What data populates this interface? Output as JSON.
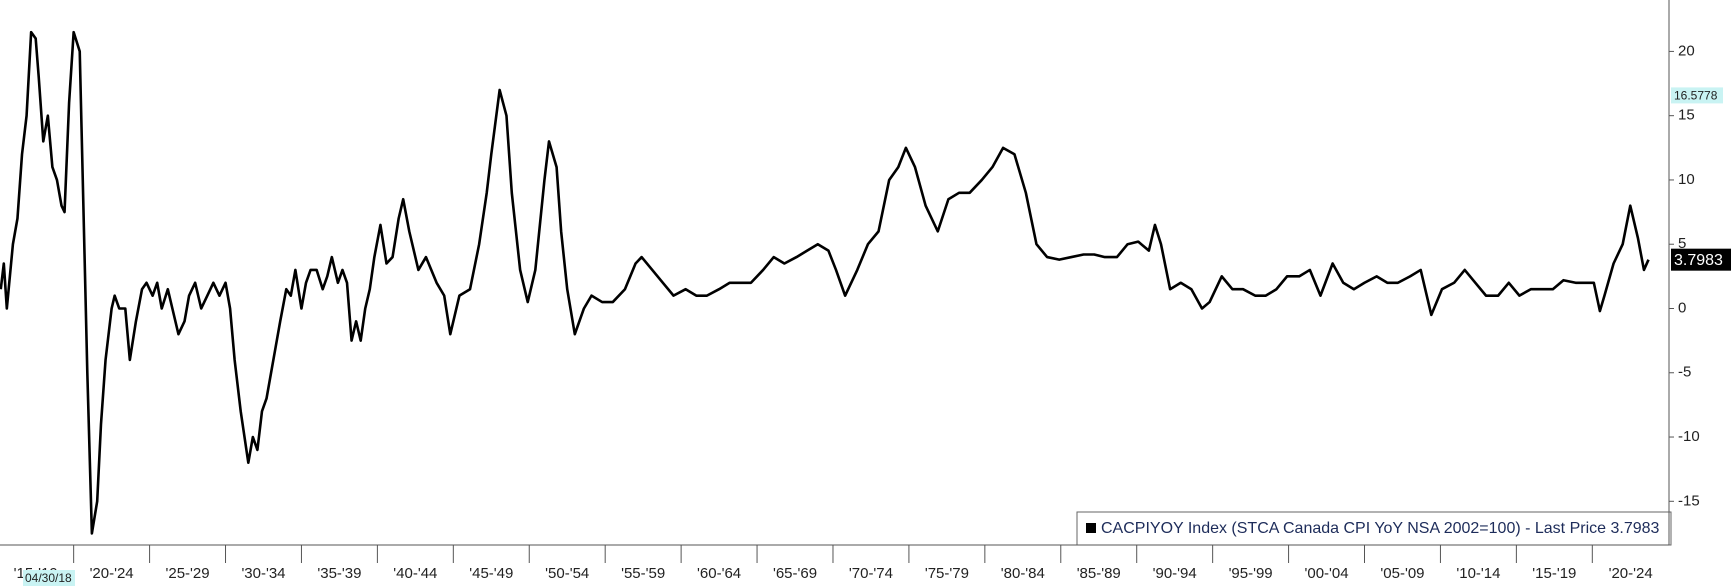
{
  "chart_data": {
    "type": "line",
    "date_label": "04/30/18",
    "xlim": [
      1915.15,
      2025.05
    ],
    "xticks": [
      {
        "value": 1915,
        "label": "'15-'19"
      },
      {
        "value": 1920,
        "label": "'20-'24"
      },
      {
        "value": 1925,
        "label": "'25-'29"
      },
      {
        "value": 1930,
        "label": "'30-'34"
      },
      {
        "value": 1935,
        "label": "'35-'39"
      },
      {
        "value": 1940,
        "label": "'40-'44"
      },
      {
        "value": 1945,
        "label": "'45-'49"
      },
      {
        "value": 1950,
        "label": "'50-'54"
      },
      {
        "value": 1955,
        "label": "'55-'59"
      },
      {
        "value": 1960,
        "label": "'60-'64"
      },
      {
        "value": 1965,
        "label": "'65-'69"
      },
      {
        "value": 1970,
        "label": "'70-'74"
      },
      {
        "value": 1975,
        "label": "'75-'79"
      },
      {
        "value": 1980,
        "label": "'80-'84"
      },
      {
        "value": 1985,
        "label": "'85-'89"
      },
      {
        "value": 1990,
        "label": "'90-'94"
      },
      {
        "value": 1995,
        "label": "'95-'99"
      },
      {
        "value": 2000,
        "label": "'00-'04"
      },
      {
        "value": 2005,
        "label": "'05-'09"
      },
      {
        "value": 2010,
        "label": "'10-'14"
      },
      {
        "value": 2015,
        "label": "'15-'19"
      },
      {
        "value": 2020,
        "label": "'20-'24"
      }
    ],
    "ylim": [
      -18.4,
      24
    ],
    "yticks": [
      -15,
      -10,
      -5,
      0,
      5,
      10,
      15,
      20
    ],
    "markers": [
      16.5778,
      3.7983
    ],
    "x": [
      1915.2,
      1915.4,
      1915.6,
      1916.0,
      1916.3,
      1916.6,
      1916.9,
      1917.2,
      1917.5,
      1917.7,
      1918.0,
      1918.3,
      1918.6,
      1918.9,
      1919.2,
      1919.4,
      1919.7,
      1920.0,
      1920.4,
      1920.6,
      1920.9,
      1921.2,
      1921.55,
      1921.8,
      1922.1,
      1922.5,
      1922.7,
      1923.0,
      1923.4,
      1923.7,
      1924.1,
      1924.5,
      1924.8,
      1925.2,
      1925.5,
      1925.8,
      1926.2,
      1926.5,
      1926.9,
      1927.3,
      1927.6,
      1928.0,
      1928.4,
      1928.8,
      1929.2,
      1929.6,
      1930.0,
      1930.3,
      1930.6,
      1931.0,
      1931.5,
      1931.8,
      1932.1,
      1932.4,
      1932.7,
      1933.0,
      1933.3,
      1933.6,
      1934.0,
      1934.3,
      1934.6,
      1935.0,
      1935.3,
      1935.6,
      1936.0,
      1936.4,
      1936.7,
      1937.0,
      1937.4,
      1937.7,
      1938.0,
      1938.3,
      1938.6,
      1938.9,
      1939.2,
      1939.5,
      1939.8,
      1940.2,
      1940.6,
      1941.0,
      1941.4,
      1941.7,
      1942.1,
      1942.7,
      1943.2,
      1943.9,
      1944.4,
      1944.8,
      1945.4,
      1946.1,
      1946.7,
      1947.2,
      1947.5,
      1948.05,
      1948.5,
      1948.85,
      1949.4,
      1949.9,
      1950.4,
      1951.0,
      1951.3,
      1951.8,
      1952.1,
      1952.5,
      1953.0,
      1953.6,
      1954.1,
      1954.8,
      1955.5,
      1956.3,
      1957.0,
      1957.4,
      1958.1,
      1958.8,
      1959.5,
      1960.3,
      1961.0,
      1961.7,
      1962.5,
      1963.2,
      1963.9,
      1964.6,
      1965.4,
      1966.1,
      1966.8,
      1967.6,
      1968.3,
      1969.0,
      1969.7,
      1970.2,
      1970.8,
      1971.6,
      1972.3,
      1973.0,
      1973.7,
      1974.3,
      1974.8,
      1975.4,
      1976.1,
      1976.9,
      1977.6,
      1978.3,
      1979.0,
      1979.8,
      1980.5,
      1981.2,
      1981.95,
      1982.7,
      1983.4,
      1984.1,
      1984.9,
      1985.7,
      1986.5,
      1987.2,
      1987.9,
      1988.7,
      1989.4,
      1990.1,
      1990.8,
      1991.2,
      1991.6,
      1992.2,
      1992.9,
      1993.6,
      1994.3,
      1994.8,
      1995.6,
      1996.3,
      1997.0,
      1997.8,
      1998.5,
      1999.2,
      1999.9,
      2000.7,
      2001.4,
      2002.1,
      2002.9,
      2003.6,
      2004.3,
      2005.0,
      2005.8,
      2006.5,
      2007.2,
      2008.0,
      2008.7,
      2009.4,
      2010.1,
      2010.9,
      2011.6,
      2012.3,
      2013.0,
      2013.8,
      2014.5,
      2015.2,
      2015.95,
      2016.7,
      2017.4,
      2018.1,
      2018.9,
      2019.6,
      2020.1,
      2020.5,
      2020.8,
      2021.4,
      2022.0,
      2022.5,
      2023.0,
      2023.4,
      2023.7
    ],
    "series": [
      {
        "name": "CACPIYOY Index (STCA Canada CPI YoY NSA 2002=100) - Last Price 3.7983",
        "color": "#000000",
        "values": [
          1.5,
          3.5,
          0,
          5,
          7,
          12,
          15,
          21.5,
          21,
          18,
          13,
          15,
          11,
          10,
          8,
          7.5,
          16,
          21.5,
          20,
          10,
          -5,
          -17.5,
          -15,
          -9,
          -4,
          0,
          1,
          0,
          0,
          -4,
          -1,
          1.5,
          2,
          1,
          2,
          0,
          1.5,
          0,
          -2,
          -1,
          1,
          2,
          0,
          1,
          2,
          1,
          2,
          0,
          -4,
          -8,
          -12,
          -10,
          -11,
          -8,
          -7,
          -5,
          -3,
          -1,
          1.5,
          1,
          3,
          0,
          2,
          3,
          3,
          1.5,
          2.5,
          4,
          2,
          3,
          2,
          -2.5,
          -1,
          -2.5,
          0,
          1.5,
          4,
          6.5,
          3.5,
          4,
          7,
          8.5,
          6,
          3,
          4,
          2,
          1,
          -2,
          1,
          1.5,
          5,
          9,
          12,
          17,
          15,
          9,
          3,
          0.5,
          3,
          10,
          13,
          11,
          6,
          1.5,
          -2,
          0,
          1,
          0.5,
          0.5,
          1.5,
          3.5,
          4,
          3,
          2,
          1,
          1.5,
          1,
          1,
          1.5,
          2,
          2,
          2,
          3,
          4,
          3.5,
          4,
          4.5,
          5,
          4.5,
          3,
          1,
          3,
          5,
          6,
          10,
          11,
          12.5,
          11,
          8,
          6,
          8.5,
          9,
          9,
          10,
          11,
          12.5,
          12,
          9,
          5,
          4,
          3.8,
          4,
          4.2,
          4.2,
          4,
          4,
          5,
          5.2,
          4.5,
          6.5,
          5,
          1.5,
          2,
          1.5,
          0,
          0.5,
          2.5,
          1.5,
          1.5,
          1,
          1,
          1.5,
          2.5,
          2.5,
          3,
          1,
          3.5,
          2,
          1.5,
          2,
          2.5,
          2,
          2,
          2.5,
          3,
          -0.5,
          1.5,
          2,
          3,
          2,
          1,
          1,
          2,
          1,
          1.5,
          1.5,
          1.5,
          2.2,
          2,
          2,
          2,
          -0.2,
          1,
          3.5,
          5,
          8,
          5.5,
          3,
          3.7983
        ]
      }
    ]
  }
}
